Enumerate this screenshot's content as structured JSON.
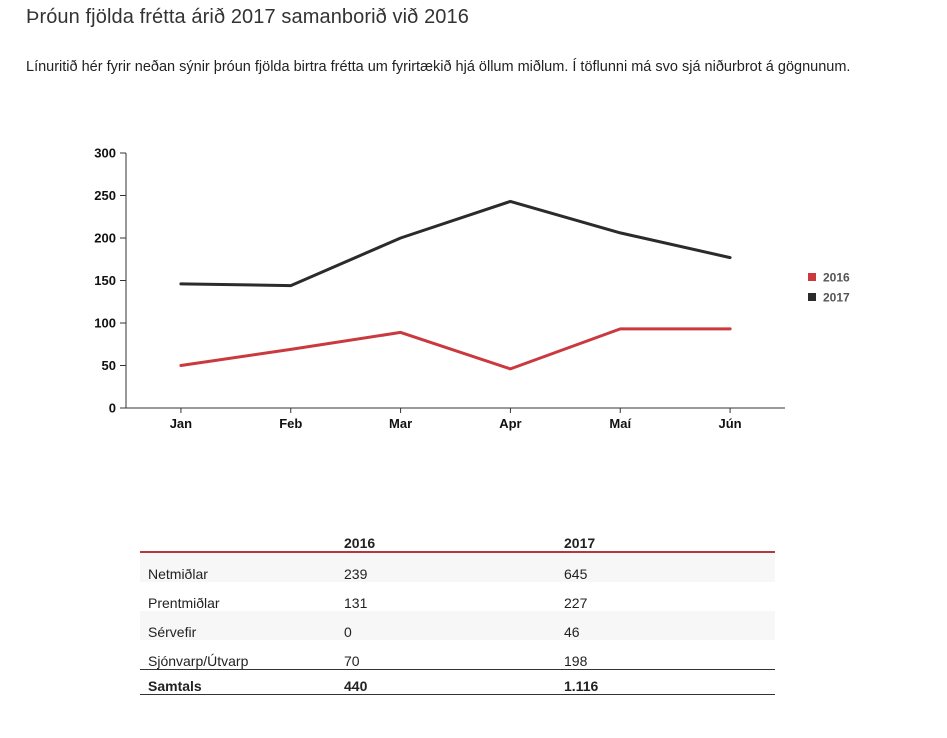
{
  "page": {
    "title": "Þróun fjölda frétta árið 2017 samanborið við 2016",
    "description": "Línuritið hér fyrir neðan sýnir þróun fjölda birtra frétta um fyrirtækið hjá öllum miðlum. Í töflunni má svo sjá niðurbrot á gögnunum."
  },
  "chart_data": {
    "type": "line",
    "categories": [
      "Jan",
      "Feb",
      "Mar",
      "Apr",
      "Maí",
      "Jún"
    ],
    "series": [
      {
        "name": "2016",
        "color": "#c9393e",
        "values": [
          50,
          69,
          89,
          46,
          93,
          93
        ]
      },
      {
        "name": "2017",
        "color": "#2b2b2b",
        "values": [
          146,
          144,
          200,
          243,
          206,
          177
        ]
      }
    ],
    "yticks": [
      0,
      50,
      100,
      150,
      200,
      250,
      300
    ],
    "ylim": [
      0,
      300
    ],
    "grid": false,
    "legend": "right"
  },
  "table": {
    "headers": [
      "",
      "2016",
      "2017"
    ],
    "rows": [
      {
        "label": "Netmiðlar",
        "v2016": "239",
        "v2017": "645"
      },
      {
        "label": "Prentmiðlar",
        "v2016": "131",
        "v2017": "227"
      },
      {
        "label": "Sérvefir",
        "v2016": "0",
        "v2017": "46"
      },
      {
        "label": "Sjónvarp/Útvarp",
        "v2016": "70",
        "v2017": "198"
      }
    ],
    "total": {
      "label": "Samtals",
      "v2016": "440",
      "v2017": "1.116"
    },
    "accent_color": "#b23a3a"
  }
}
